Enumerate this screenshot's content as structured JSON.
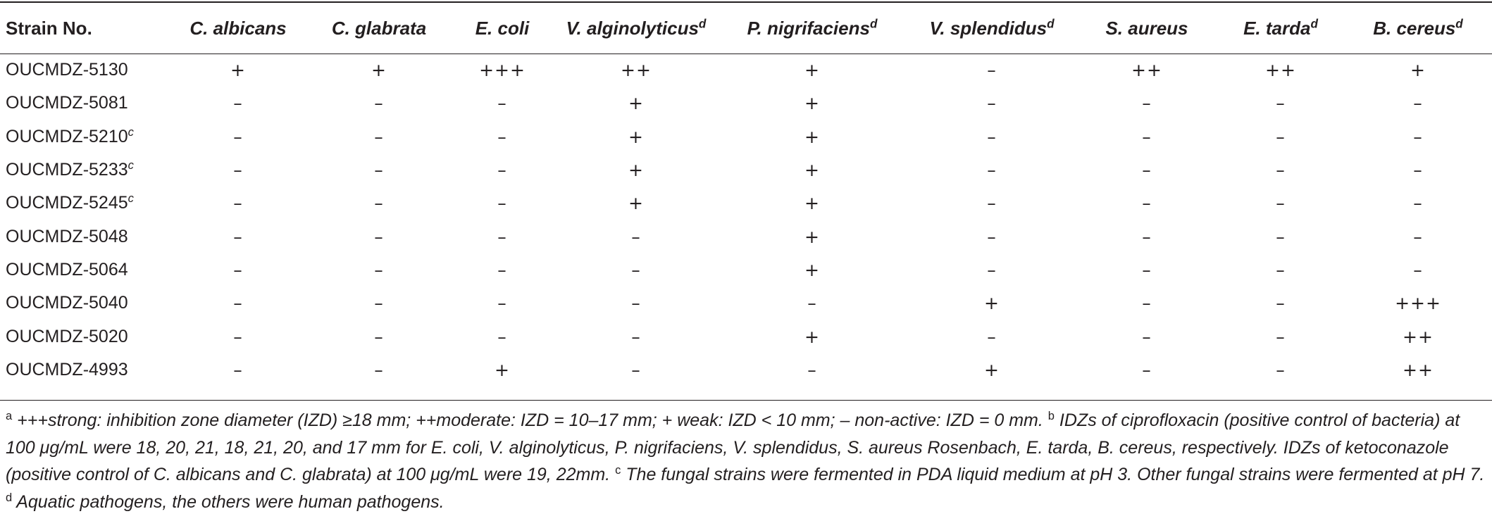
{
  "table": {
    "header_first": "Strain No.",
    "columns": [
      {
        "name": "C. albicans",
        "sup": ""
      },
      {
        "name": "C. glabrata",
        "sup": ""
      },
      {
        "name": "E. coli",
        "sup": ""
      },
      {
        "name": "V. alginolyticus",
        "sup": "d"
      },
      {
        "name": "P. nigrifaciens",
        "sup": "d"
      },
      {
        "name": "V. splendidus",
        "sup": "d"
      },
      {
        "name": "S. aureus",
        "sup": ""
      },
      {
        "name": "E. tarda",
        "sup": "d"
      },
      {
        "name": "B. cereus",
        "sup": "d"
      }
    ],
    "rows": [
      {
        "strain": "OUCMDZ-5130",
        "sup": "",
        "values": [
          "+",
          "+",
          "+++",
          "++",
          "+",
          "–",
          "++",
          "++",
          "+"
        ]
      },
      {
        "strain": "OUCMDZ-5081",
        "sup": "",
        "values": [
          "–",
          "–",
          "–",
          "+",
          "+",
          "–",
          "–",
          "–",
          "–"
        ]
      },
      {
        "strain": "OUCMDZ-5210",
        "sup": "c",
        "values": [
          "–",
          "–",
          "–",
          "+",
          "+",
          "–",
          "–",
          "–",
          "–"
        ]
      },
      {
        "strain": "OUCMDZ-5233",
        "sup": "c",
        "values": [
          "–",
          "–",
          "–",
          "+",
          "+",
          "–",
          "–",
          "–",
          "–"
        ]
      },
      {
        "strain": "OUCMDZ-5245",
        "sup": "c",
        "values": [
          "–",
          "–",
          "–",
          "+",
          "+",
          "–",
          "–",
          "–",
          "–"
        ]
      },
      {
        "strain": "OUCMDZ-5048",
        "sup": "",
        "values": [
          "–",
          "–",
          "–",
          "–",
          "+",
          "–",
          "–",
          "–",
          "–"
        ]
      },
      {
        "strain": "OUCMDZ-5064",
        "sup": "",
        "values": [
          "–",
          "–",
          "–",
          "–",
          "+",
          "–",
          "–",
          "–",
          "–"
        ]
      },
      {
        "strain": "OUCMDZ-5040",
        "sup": "",
        "values": [
          "–",
          "–",
          "–",
          "–",
          "–",
          "+",
          "–",
          "–",
          "+++"
        ]
      },
      {
        "strain": "OUCMDZ-5020",
        "sup": "",
        "values": [
          "–",
          "–",
          "–",
          "–",
          "+",
          "–",
          "–",
          "–",
          "++"
        ]
      },
      {
        "strain": "OUCMDZ-4993",
        "sup": "",
        "values": [
          "–",
          "–",
          "+",
          "–",
          "–",
          "+",
          "–",
          "–",
          "++"
        ]
      }
    ]
  },
  "footnotes": {
    "a_mark": "a",
    "a_text": "+++strong: inhibition zone diameter (IZD) ≥18 mm; ++moderate: IZD = 10–17 mm; + weak: IZD < 10 mm; – non-active: IZD = 0 mm.",
    "b_mark": "b",
    "b_text": "IDZs of ciprofloxacin (positive control of bacteria) at 100 μg/mL were 18, 20, 21, 18, 21, 20, and 17 mm for E. coli, V. alginolyticus, P. nigrifaciens, V. splendidus, S. aureus Rosenbach, E. tarda, B. cereus, respectively. IDZs of ketoconazole (positive control of C. albicans and C. glabrata) at 100 μg/mL were 19, 22mm.",
    "c_mark": "c",
    "c_text": "The fungal strains were fermented in PDA liquid medium at pH 3. Other fungal strains were fermented at pH 7.",
    "d_mark": "d",
    "d_text": "Aquatic pathogens, the others were human pathogens."
  }
}
